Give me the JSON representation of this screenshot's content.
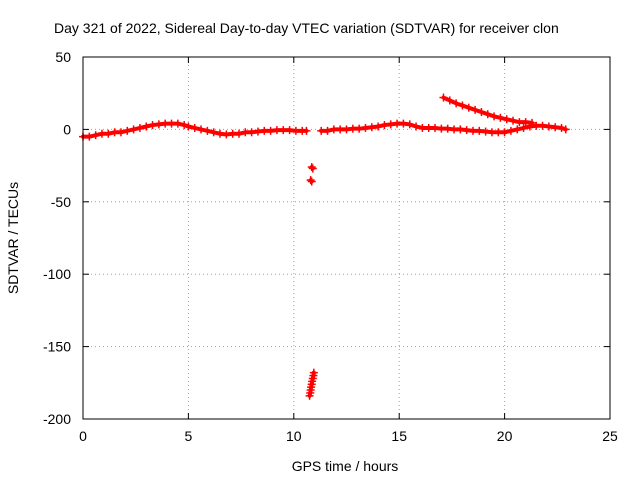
{
  "chart_data": {
    "type": "scatter",
    "title": "Day 321 of 2022, Sidereal Day-to-day VTEC variation (SDTVAR) for receiver clon",
    "xlabel": "GPS time / hours",
    "ylabel": "SDTVAR / TECUs",
    "xlim": [
      0,
      25
    ],
    "ylim": [
      -200,
      50
    ],
    "xticks": [
      0,
      5,
      10,
      15,
      20,
      25
    ],
    "yticks": [
      50,
      0,
      -50,
      -100,
      -150,
      -200
    ],
    "grid": true,
    "marker": "+",
    "series": [
      {
        "name": "SDTVAR",
        "color": "#ff0000",
        "segments": [
          {
            "x": [
              0.0,
              0.3,
              0.6,
              0.9,
              1.2,
              1.5,
              1.8,
              2.1,
              2.4,
              2.7,
              3.0,
              3.3,
              3.6,
              3.9,
              4.2,
              4.5,
              4.8,
              5.0,
              5.3,
              5.6,
              5.9,
              6.2,
              6.5,
              6.8,
              7.1,
              7.4,
              7.7,
              8.0,
              8.3,
              8.6,
              8.9,
              9.2,
              9.5,
              9.8,
              10.1,
              10.4,
              10.6
            ],
            "y": [
              -5,
              -5,
              -4,
              -3,
              -3,
              -2,
              -2,
              -1,
              0,
              1,
              2,
              3,
              3.5,
              4,
              4,
              4,
              3,
              2,
              1,
              0,
              -1,
              -2,
              -3,
              -3.5,
              -3,
              -3,
              -2,
              -2,
              -1.5,
              -1,
              -1,
              -0.5,
              -0.5,
              -0.5,
              -1,
              -1,
              -1
            ]
          },
          {
            "x": [
              10.85,
              10.9
            ],
            "y": [
              -26,
              -27
            ]
          },
          {
            "x": [
              10.8,
              10.85
            ],
            "y": [
              -35,
              -36
            ]
          },
          {
            "x": [
              10.75,
              10.78,
              10.8,
              10.82,
              10.85,
              10.87,
              10.9,
              10.93,
              10.95
            ],
            "y": [
              -184,
              -182,
              -180,
              -178,
              -176,
              -174,
              -172,
              -170,
              -168
            ]
          },
          {
            "x": [
              11.3,
              11.6,
              11.9,
              12.2,
              12.5,
              12.8,
              13.1,
              13.4,
              13.7,
              14.0,
              14.3,
              14.6,
              14.9,
              15.2,
              15.5,
              15.8,
              16.1,
              16.4,
              16.7,
              17.0,
              17.3,
              17.6,
              17.9,
              18.2,
              18.5,
              18.8,
              19.1,
              19.4,
              19.7,
              20.0,
              20.3,
              20.6,
              20.9,
              21.2,
              21.5,
              21.8,
              22.1,
              22.4,
              22.7,
              22.9
            ],
            "y": [
              -1,
              -1,
              0,
              0,
              0,
              0.5,
              0.5,
              1,
              1.5,
              2,
              3,
              3.5,
              4,
              4,
              3.5,
              2,
              1,
              1,
              1,
              0.5,
              0.5,
              0,
              0,
              -0.5,
              -1,
              -1,
              -1.5,
              -2,
              -2,
              -2,
              -1,
              0,
              1,
              2,
              2.5,
              2.5,
              2,
              1.5,
              1,
              0
            ]
          },
          {
            "x": [
              17.1,
              17.4,
              17.7,
              18.0,
              18.3,
              18.6,
              18.9,
              19.2,
              19.5,
              19.8,
              20.1,
              20.4,
              20.7,
              21.0,
              21.3
            ],
            "y": [
              22,
              20,
              18,
              16.5,
              15,
              13.5,
              12,
              10.5,
              9,
              8,
              7,
              6,
              5,
              5,
              4.5
            ]
          }
        ]
      }
    ]
  }
}
